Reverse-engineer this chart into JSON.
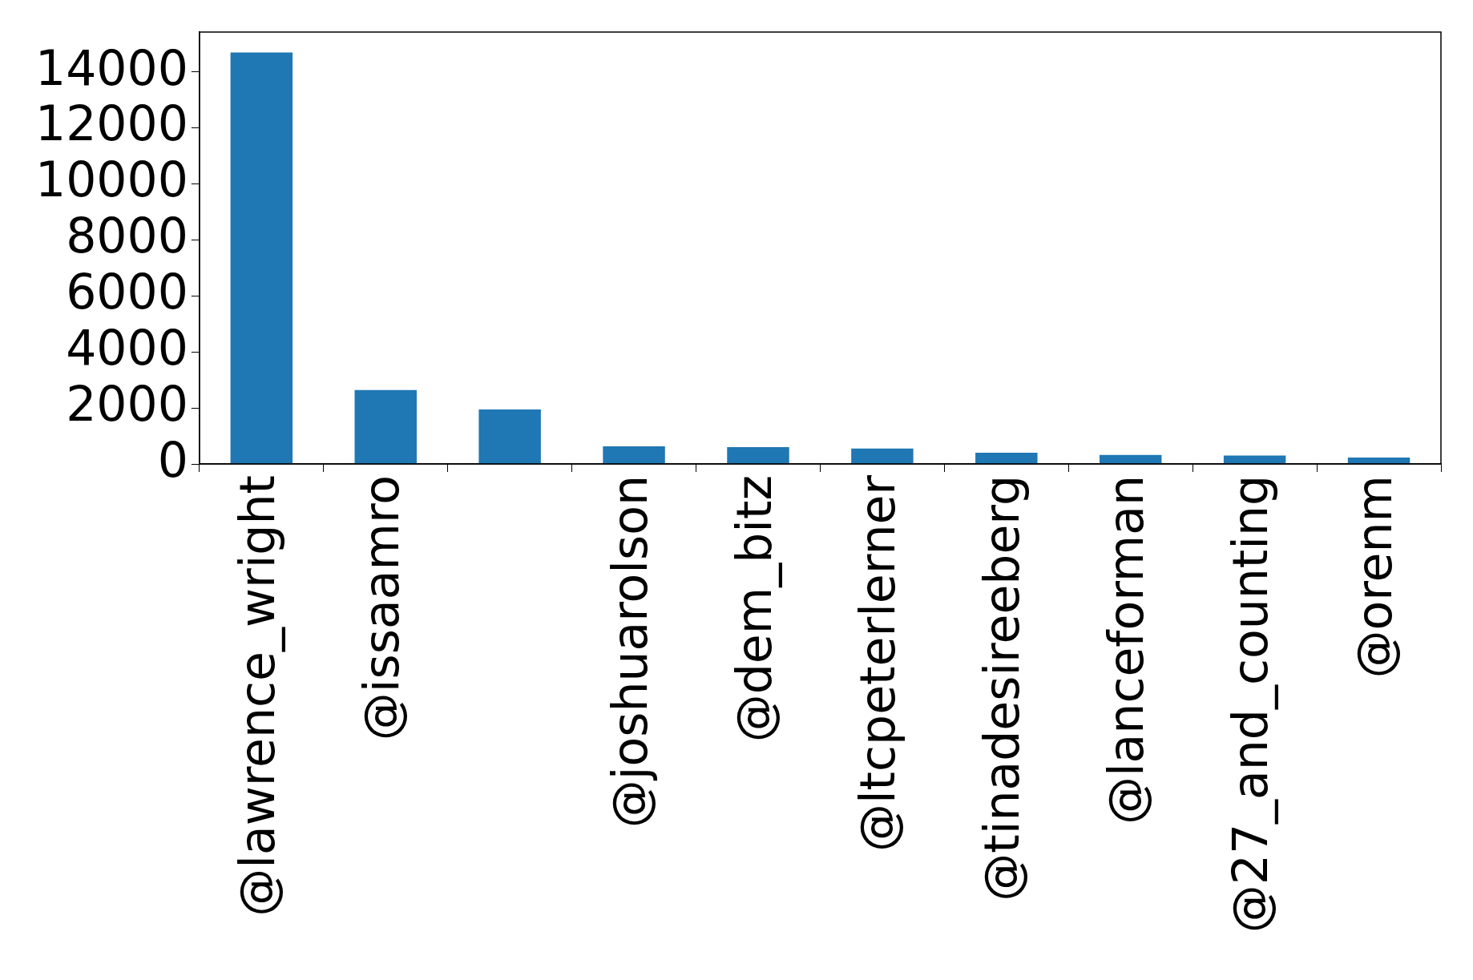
{
  "chart_data": {
    "type": "bar",
    "categories": [
      "@lawrence_wright",
      "@issaamro",
      null,
      "@joshuarolson",
      "@dem_bitz",
      "@ltcpeterlerner",
      "@tinadesireeberg",
      "@lanceforman",
      "@27_and_counting",
      "@orenm"
    ],
    "values": [
      14700,
      2640,
      1950,
      630,
      600,
      550,
      400,
      320,
      300,
      230
    ],
    "color": "#1f77b4",
    "ylim": [
      0,
      15430
    ],
    "yticks": [
      0,
      2000,
      4000,
      6000,
      8000,
      10000,
      12000,
      14000
    ],
    "grid": false,
    "legend": false
  }
}
